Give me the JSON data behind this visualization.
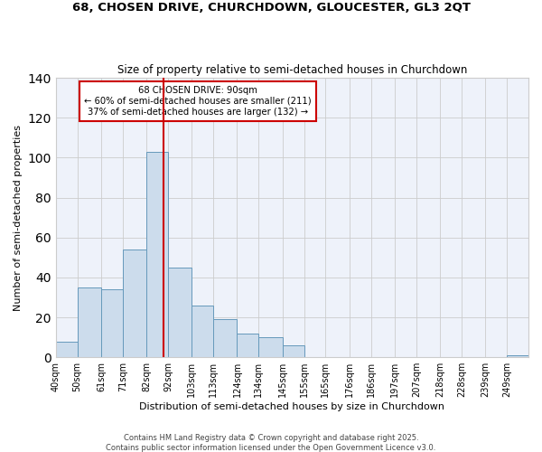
{
  "title": "68, CHOSEN DRIVE, CHURCHDOWN, GLOUCESTER, GL3 2QT",
  "subtitle": "Size of property relative to semi-detached houses in Churchdown",
  "xlabel": "Distribution of semi-detached houses by size in Churchdown",
  "ylabel": "Number of semi-detached properties",
  "bar_color": "#ccdcec",
  "bar_edge_color": "#6699bb",
  "background_color": "#eef2fa",
  "fig_background": "#ffffff",
  "grid_color": "#cccccc",
  "bin_labels": [
    "40sqm",
    "50sqm",
    "61sqm",
    "71sqm",
    "82sqm",
    "92sqm",
    "103sqm",
    "113sqm",
    "124sqm",
    "134sqm",
    "145sqm",
    "155sqm",
    "165sqm",
    "176sqm",
    "186sqm",
    "197sqm",
    "207sqm",
    "218sqm",
    "228sqm",
    "239sqm",
    "249sqm"
  ],
  "bin_edges": [
    40,
    50,
    61,
    71,
    82,
    92,
    103,
    113,
    124,
    134,
    145,
    155,
    165,
    176,
    186,
    197,
    207,
    218,
    228,
    239,
    249,
    259
  ],
  "counts": [
    8,
    35,
    34,
    54,
    103,
    45,
    26,
    19,
    12,
    10,
    6,
    0,
    0,
    0,
    0,
    0,
    0,
    0,
    0,
    0,
    1
  ],
  "vline_x": 90,
  "vline_color": "#cc0000",
  "annotation_title": "68 CHOSEN DRIVE: 90sqm",
  "annotation_line1": "← 60% of semi-detached houses are smaller (211)",
  "annotation_line2": "37% of semi-detached houses are larger (132) →",
  "annotation_box_color": "#ffffff",
  "annotation_box_edge": "#cc0000",
  "ylim": [
    0,
    140
  ],
  "yticks": [
    0,
    20,
    40,
    60,
    80,
    100,
    120,
    140
  ],
  "footer1": "Contains HM Land Registry data © Crown copyright and database right 2025.",
  "footer2": "Contains public sector information licensed under the Open Government Licence v3.0."
}
